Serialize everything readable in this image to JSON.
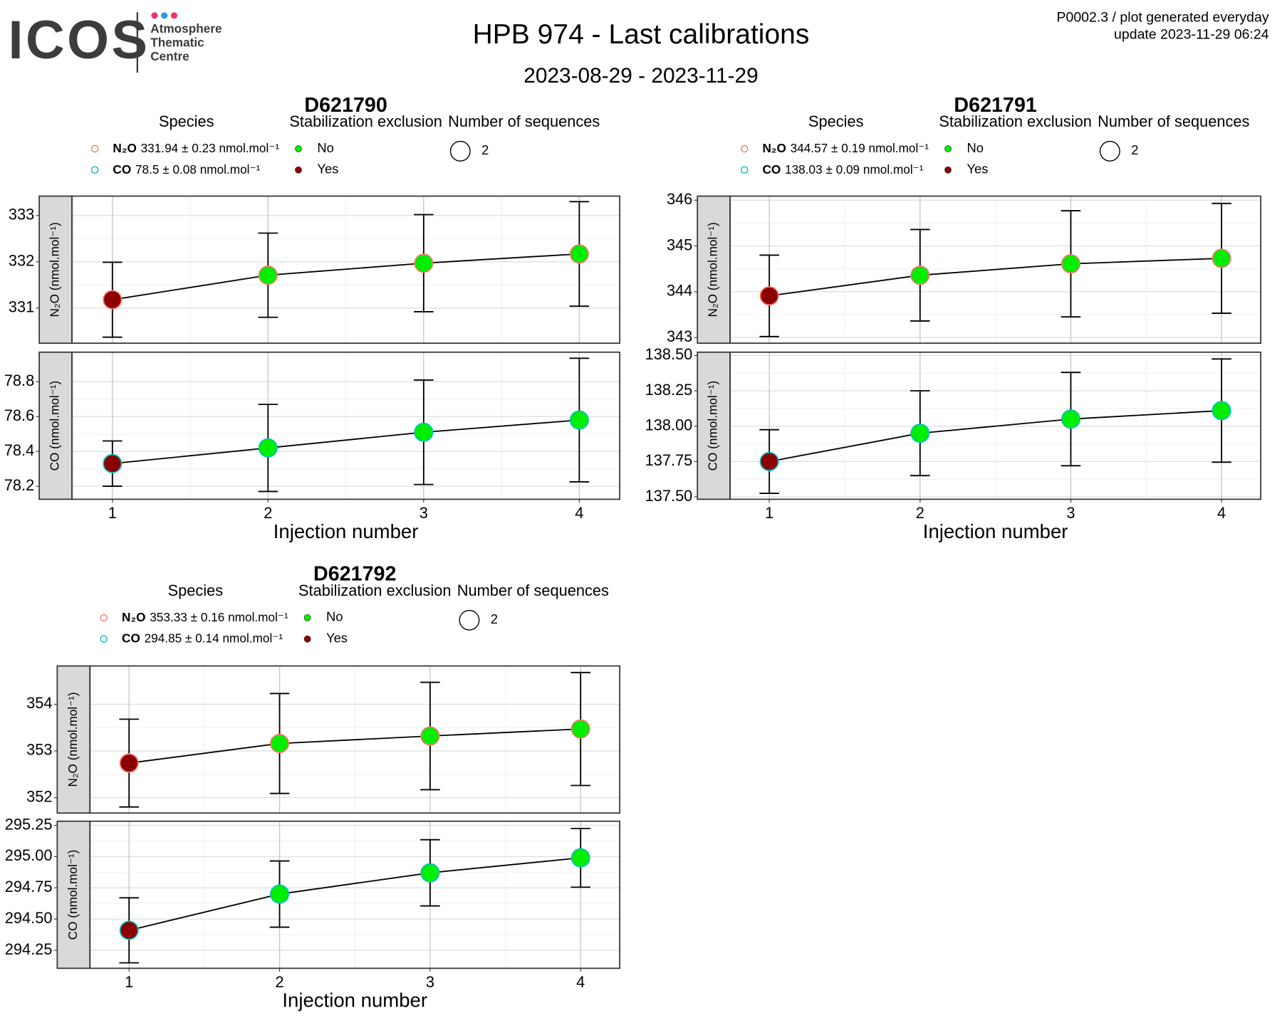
{
  "header": {
    "logo": "ICOS",
    "logo_lines": [
      "Atmosphere",
      "Thematic",
      "Centre"
    ],
    "title": "HPB 974 - Last calibrations",
    "subtitle": "2023-08-29 - 2023-11-29",
    "notes": [
      "P0002.3 / plot generated everyday",
      "update  2023-11-29 06:24"
    ]
  },
  "chart_data": [
    {
      "type": "errorbar",
      "title": "D621790",
      "legend": {
        "species_title": "Species",
        "species": [
          {
            "name": "N₂O",
            "label": "331.94 ± 0.23 nmol.mol⁻¹",
            "color": "#f8766d"
          },
          {
            "name": "CO",
            "label": "78.5 ± 0.08 nmol.mol⁻¹",
            "color": "#00bfc4"
          }
        ],
        "exclusion_title": "Stabilization exclusion",
        "exclusion": [
          {
            "name": "No",
            "color": "#00ee00"
          },
          {
            "name": "Yes",
            "color": "#8b0000"
          }
        ],
        "sequences_title": "Number of sequences",
        "sequences": [
          2
        ]
      },
      "x": [
        1,
        2,
        3,
        4
      ],
      "xlim": [
        0.74,
        4.26
      ],
      "xticks": [
        1,
        2,
        3,
        4
      ],
      "xlabel": "Injection number",
      "panels": [
        {
          "ylabel": "N₂O (nmol.mol⁻¹)",
          "species": "N₂O",
          "ylim": [
            330.24,
            333.42
          ],
          "yticks": [
            331,
            332,
            333
          ],
          "values": [
            331.18,
            331.71,
            331.97,
            332.17
          ],
          "errors": [
            0.81,
            0.91,
            1.05,
            1.13
          ],
          "excluded": [
            "Yes",
            "No",
            "No",
            "No"
          ]
        },
        {
          "ylabel": "CO (nmol.mol⁻¹)",
          "species": "CO",
          "ylim": [
            78.125,
            78.97
          ],
          "yticks": [
            78.2,
            78.4,
            78.6,
            78.8
          ],
          "values": [
            78.33,
            78.42,
            78.51,
            78.58
          ],
          "errors": [
            0.13,
            0.25,
            0.3,
            0.355
          ],
          "excluded": [
            "Yes",
            "No",
            "No",
            "No"
          ]
        }
      ]
    },
    {
      "type": "errorbar",
      "title": "D621791",
      "legend": {
        "species_title": "Species",
        "species": [
          {
            "name": "N₂O",
            "label": "344.57 ± 0.19 nmol.mol⁻¹",
            "color": "#f8766d"
          },
          {
            "name": "CO",
            "label": "138.03 ± 0.09 nmol.mol⁻¹",
            "color": "#00bfc4"
          }
        ],
        "exclusion_title": "Stabilization exclusion",
        "exclusion": [
          {
            "name": "No",
            "color": "#00ee00"
          },
          {
            "name": "Yes",
            "color": "#8b0000"
          }
        ],
        "sequences_title": "Number of sequences",
        "sequences": [
          2
        ]
      },
      "x": [
        1,
        2,
        3,
        4
      ],
      "xlim": [
        0.74,
        4.26
      ],
      "xticks": [
        1,
        2,
        3,
        4
      ],
      "xlabel": "Injection number",
      "panels": [
        {
          "ylabel": "N₂O (nmol.mol⁻¹)",
          "species": "N₂O",
          "ylim": [
            342.875,
            346.09
          ],
          "yticks": [
            343,
            344,
            345,
            346
          ],
          "values": [
            343.91,
            344.36,
            344.61,
            344.73
          ],
          "errors": [
            0.89,
            1.0,
            1.16,
            1.2
          ],
          "excluded": [
            "Yes",
            "No",
            "No",
            "No"
          ]
        },
        {
          "ylabel": "CO (nmol.mol⁻¹)",
          "species": "CO",
          "ylim": [
            137.483,
            138.523
          ],
          "yticks": [
            {
              "value": 137.5,
              "label": "137.50"
            },
            137.75,
            {
              "value": 138,
              "label": "138.00"
            },
            138.25,
            {
              "value": 138.5,
              "label": "138.50"
            }
          ],
          "values": [
            137.75,
            137.95,
            138.05,
            138.11
          ],
          "errors": [
            0.225,
            0.3,
            0.33,
            0.365
          ],
          "excluded": [
            "Yes",
            "No",
            "No",
            "No"
          ]
        }
      ]
    },
    {
      "type": "errorbar",
      "title": "D621792",
      "legend": {
        "species_title": "Species",
        "species": [
          {
            "name": "N₂O",
            "label": "353.33 ± 0.16 nmol.mol⁻¹",
            "color": "#f8766d"
          },
          {
            "name": "CO",
            "label": "294.85 ± 0.14 nmol.mol⁻¹",
            "color": "#00bfc4"
          }
        ],
        "exclusion_title": "Stabilization exclusion",
        "exclusion": [
          {
            "name": "No",
            "color": "#00ee00"
          },
          {
            "name": "Yes",
            "color": "#8b0000"
          }
        ],
        "sequences_title": "Number of sequences",
        "sequences": [
          2
        ]
      },
      "x": [
        1,
        2,
        3,
        4
      ],
      "xlim": [
        0.74,
        4.26
      ],
      "xticks": [
        1,
        2,
        3,
        4
      ],
      "xlabel": "Injection number",
      "panels": [
        {
          "ylabel": "N₂O (nmol.mol⁻¹)",
          "species": "N₂O",
          "ylim": [
            351.67,
            354.82
          ],
          "yticks": [
            352,
            353,
            354
          ],
          "values": [
            352.74,
            353.16,
            353.32,
            353.47
          ],
          "errors": [
            0.94,
            1.07,
            1.15,
            1.21
          ],
          "excluded": [
            "Yes",
            "No",
            "No",
            "No"
          ]
        },
        {
          "ylabel": "CO (nmol.mol⁻¹)",
          "species": "CO",
          "ylim": [
            294.106,
            295.283
          ],
          "yticks": [
            294.25,
            {
              "value": 294.5,
              "label": "294.50"
            },
            294.75,
            {
              "value": 295,
              "label": "295.00"
            },
            295.25
          ],
          "values": [
            294.41,
            294.7,
            294.87,
            294.99
          ],
          "errors": [
            0.26,
            0.265,
            0.265,
            0.235
          ],
          "excluded": [
            "Yes",
            "No",
            "No",
            "No"
          ]
        }
      ]
    }
  ]
}
